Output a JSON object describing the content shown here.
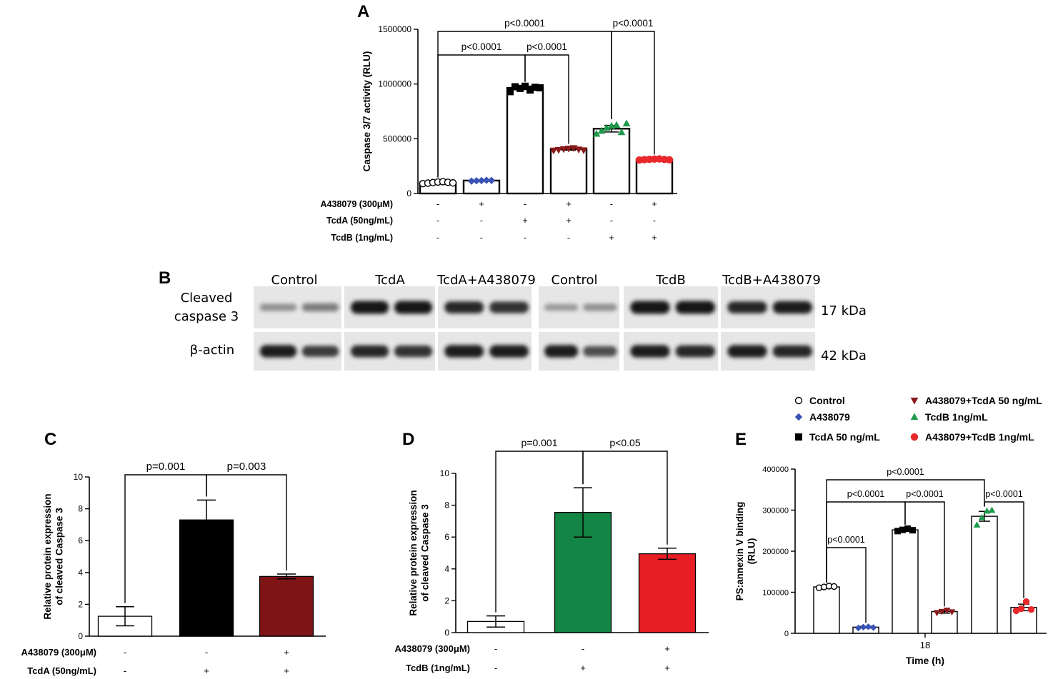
{
  "chart_data": [
    {
      "panel": "A",
      "type": "bar",
      "ylabel": "Caspase 3/7 activity (RLU)",
      "ylim": [
        0,
        1500000
      ],
      "yticks": [
        "0",
        "500000",
        "1000000",
        "1500000"
      ],
      "values": [
        100000,
        118000,
        965000,
        405000,
        592000,
        312000
      ],
      "errors": [
        6000,
        4000,
        16000,
        9000,
        30000,
        5000
      ],
      "points": [
        [
          90000,
          95000,
          100000,
          105000,
          108000,
          102000,
          97000
        ],
        [
          113000,
          116000,
          118000,
          121000,
          119000
        ],
        [
          930000,
          975000,
          960000,
          980000,
          945000,
          970000,
          965000
        ],
        [
          392000,
          398000,
          405000,
          410000,
          414000,
          402000,
          395000
        ],
        [
          545000,
          572000,
          600000,
          618000,
          625000,
          560000,
          640000
        ],
        [
          306000,
          309000,
          312000,
          314000,
          316000,
          311000,
          308000
        ]
      ],
      "bar_colors": [
        "#000000",
        "#000000",
        "#000000",
        "#000000",
        "#000000",
        "#000000"
      ],
      "point_colors": [
        "#ffffff",
        "#3a52b3",
        "#000000",
        "#8b1a1a",
        "#1f9a4c",
        "#e8282a"
      ],
      "markers": [
        "circle",
        "diamond",
        "square",
        "tri-down",
        "tri-up",
        "circle"
      ],
      "conditions": [
        {
          "label": "A438079 (300μM)",
          "values": [
            "-",
            "+",
            "-",
            "+",
            "-",
            "+"
          ]
        },
        {
          "label": "TcdA (50ng/mL)",
          "values": [
            "-",
            "-",
            "+",
            "+",
            "-",
            "-"
          ]
        },
        {
          "label": "TcdB (1ng/mL)",
          "values": [
            "-",
            "-",
            "-",
            "-",
            "+",
            "+"
          ]
        }
      ],
      "annotations": [
        {
          "text": "p<0.0001",
          "from": 0,
          "to": 4
        },
        {
          "text": "p<0.0001",
          "from": 4,
          "to": 5
        },
        {
          "text": "p<0.0001",
          "from": 0,
          "to": 2
        },
        {
          "text": "p<0.0001",
          "from": 2,
          "to": 3
        }
      ]
    },
    {
      "panel": "C",
      "type": "bar",
      "ylabel": "Relative protein  expression of cleaved Caspase 3",
      "ylabel_lines": [
        "Relative protein  expression",
        "of cleaved Caspase 3"
      ],
      "ylim": [
        0,
        10
      ],
      "yticks": [
        "0",
        "2",
        "4",
        "6",
        "8",
        "10"
      ],
      "values": [
        1.25,
        7.3,
        3.75
      ],
      "errors": [
        0.6,
        1.25,
        0.15
      ],
      "bar_fills": [
        "#ffffff",
        "#000000",
        "#7e1416"
      ],
      "conditions": [
        {
          "label": "A438079 (300μM)",
          "values": [
            "-",
            "-",
            "+"
          ]
        },
        {
          "label": "TcdA (50ng/mL)",
          "values": [
            "-",
            "+",
            "+"
          ]
        }
      ],
      "annotations": [
        {
          "text": "p=0.001",
          "from": 0,
          "to": 1
        },
        {
          "text": "p=0.003",
          "from": 1,
          "to": 2
        }
      ]
    },
    {
      "panel": "D",
      "type": "bar",
      "ylabel": "Relative protein expression of cleaved Caspase 3",
      "ylabel_lines": [
        "Relative protein expression",
        "of cleaved Caspase 3"
      ],
      "ylim": [
        0,
        10
      ],
      "yticks": [
        "0",
        "2",
        "4",
        "6",
        "8",
        "10"
      ],
      "values": [
        0.7,
        7.55,
        4.95
      ],
      "errors": [
        0.35,
        1.55,
        0.35
      ],
      "bar_fills": [
        "#ffffff",
        "#138544",
        "#e81e25"
      ],
      "conditions": [
        {
          "label": "A438079 (300μM)",
          "values": [
            "-",
            "-",
            "+"
          ]
        },
        {
          "label": "TcdB (1ng/mL)",
          "values": [
            "-",
            "+",
            "+"
          ]
        }
      ],
      "annotations": [
        {
          "text": "p=0.001",
          "from": 0,
          "to": 1
        },
        {
          "text": "p<0.05",
          "from": 1,
          "to": 2
        }
      ]
    },
    {
      "panel": "E",
      "type": "bar",
      "ylabel": "PS:annexin V binding (RLU)",
      "ylabel_lines": [
        "PS:annexin V binding",
        "(RLU)"
      ],
      "xlabel": "Time (h)",
      "xtick": "18",
      "ylim": [
        0,
        400000
      ],
      "yticks": [
        "0",
        "100000",
        "200000",
        "300000",
        "400000"
      ],
      "values": [
        113000,
        15000,
        252000,
        53000,
        285000,
        63000
      ],
      "errors": [
        2000,
        2000,
        4000,
        4000,
        12000,
        8000
      ],
      "points": [
        [
          111000,
          113000,
          115000,
          114000
        ],
        [
          13000,
          15000,
          16000,
          14000
        ],
        [
          249000,
          252000,
          255000,
          251000
        ],
        [
          50000,
          53000,
          56000,
          52000
        ],
        [
          264000,
          282000,
          298000,
          300000
        ],
        [
          55000,
          60000,
          77000,
          58000
        ]
      ],
      "point_colors": [
        "#ffffff",
        "#3a52b3",
        "#000000",
        "#8b1a1a",
        "#1f9a4c",
        "#e8282a"
      ],
      "markers": [
        "circle",
        "diamond",
        "square",
        "tri-down",
        "tri-up",
        "circle"
      ],
      "legend": [
        {
          "name": "Control",
          "marker": "circle",
          "color": "#ffffff"
        },
        {
          "name": "A438079",
          "marker": "diamond",
          "color": "#3a52b3"
        },
        {
          "name": "TcdA 50 ng/mL",
          "marker": "square",
          "color": "#000000"
        },
        {
          "name": "A438079+TcdA 50 ng/mL",
          "marker": "tri-down",
          "color": "#8b1a1a"
        },
        {
          "name": "TcdB 1ng/mL",
          "marker": "tri-up",
          "color": "#1f9a4c"
        },
        {
          "name": "A438079+TcdB 1ng/mL",
          "marker": "circle",
          "color": "#e8282a"
        }
      ],
      "legend_position": "top",
      "annotations": [
        {
          "text": "p<0.0001",
          "from": 0,
          "to": 4
        },
        {
          "text": "p<0.0001",
          "from": 4,
          "to": 5
        },
        {
          "text": "p<0.0001",
          "from": 0,
          "to": 2
        },
        {
          "text": "p<0.0001",
          "from": 2,
          "to": 3
        },
        {
          "text": "p<0.0001",
          "from": 0,
          "to": 1
        }
      ]
    }
  ],
  "panel_letters": {
    "a": "A",
    "b": "B",
    "c": "C",
    "d": "D",
    "e": "E"
  },
  "blot": {
    "lane_groups": [
      "Control",
      "TcdA",
      "TcdA+A438079",
      "Control",
      "TcdB",
      "TcdB+A438079"
    ],
    "row_labels": [
      "Cleaved\ncaspase 3",
      "β-actin"
    ],
    "sizes": [
      "17 kDa",
      "42 kDa"
    ],
    "cleaved_intensity": [
      0.35,
      0.45,
      1.0,
      1.0,
      0.9,
      0.85,
      0.3,
      0.35,
      1.0,
      1.0,
      0.9,
      0.95
    ],
    "actin_intensity": [
      0.95,
      0.8,
      0.9,
      0.85,
      0.95,
      0.95,
      0.95,
      0.7,
      0.95,
      0.9,
      0.95,
      0.9
    ]
  }
}
